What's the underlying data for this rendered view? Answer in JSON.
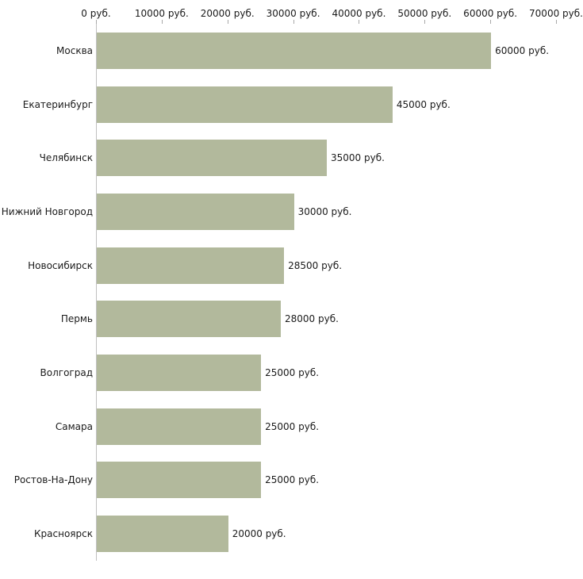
{
  "chart_data": {
    "type": "bar",
    "orientation": "horizontal",
    "title": "",
    "xlabel": "",
    "ylabel": "",
    "xlim": [
      0,
      70000
    ],
    "grid": false,
    "legend": false,
    "bar_color": "#b2b99c",
    "axis_color": "#c0c0c0",
    "tick_color": "#a9a9a9",
    "categories": [
      "Москва",
      "Екатеринбург",
      "Челябинск",
      "Нижний Новгород",
      "Новосибирск",
      "Пермь",
      "Волгоград",
      "Самара",
      "Ростов-На-Дону",
      "Красноярск"
    ],
    "values": [
      60000,
      45000,
      35000,
      30000,
      28500,
      28000,
      25000,
      25000,
      25000,
      20000
    ],
    "value_labels": [
      "60000 руб.",
      "45000 руб.",
      "35000 руб.",
      "30000 руб.",
      "28500 руб.",
      "28000 руб.",
      "25000 руб.",
      "25000 руб.",
      "25000 руб.",
      "20000 руб."
    ],
    "x_ticks": [
      0,
      10000,
      20000,
      30000,
      40000,
      50000,
      60000,
      70000
    ],
    "x_tick_labels": [
      "0 руб.",
      "10000 руб.",
      "20000 руб.",
      "30000 руб.",
      "40000 руб.",
      "50000 руб.",
      "60000 руб.",
      "70000 руб."
    ]
  }
}
